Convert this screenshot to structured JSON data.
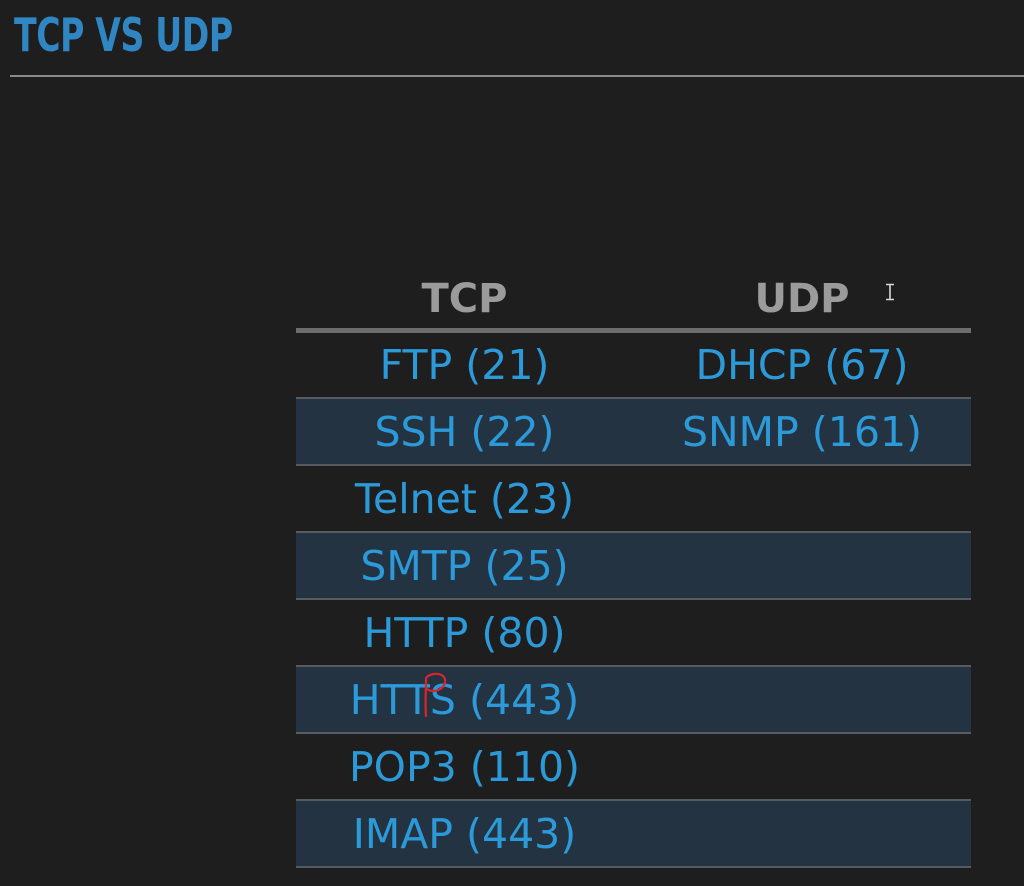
{
  "slide": {
    "title": "TCP VS UDP"
  },
  "table": {
    "headers": {
      "tcp": "TCP",
      "udp": "UDP"
    },
    "rows": [
      {
        "tcp": "FTP (21)",
        "udp": "DHCP (67)"
      },
      {
        "tcp": "SSH (22)",
        "udp": "SNMP (161)"
      },
      {
        "tcp": "Telnet (23)",
        "udp": ""
      },
      {
        "tcp": "SMTP (25)",
        "udp": ""
      },
      {
        "tcp": "HTTP (80)",
        "udp": ""
      },
      {
        "tcp": "HTTS (443)",
        "udp": ""
      },
      {
        "tcp": "POP3 (110)",
        "udp": ""
      },
      {
        "tcp": "IMAP (443)",
        "udp": ""
      }
    ],
    "annotation": {
      "color": "#d9252b",
      "note": "handwritten P"
    }
  },
  "colors": {
    "title": "#2f86c3",
    "cell_text": "#2c9ad9",
    "header_text": "#9b9b9b",
    "band": "#243341",
    "background": "#1e1e1e"
  },
  "icons": {
    "cursor": "text-cursor-icon"
  }
}
